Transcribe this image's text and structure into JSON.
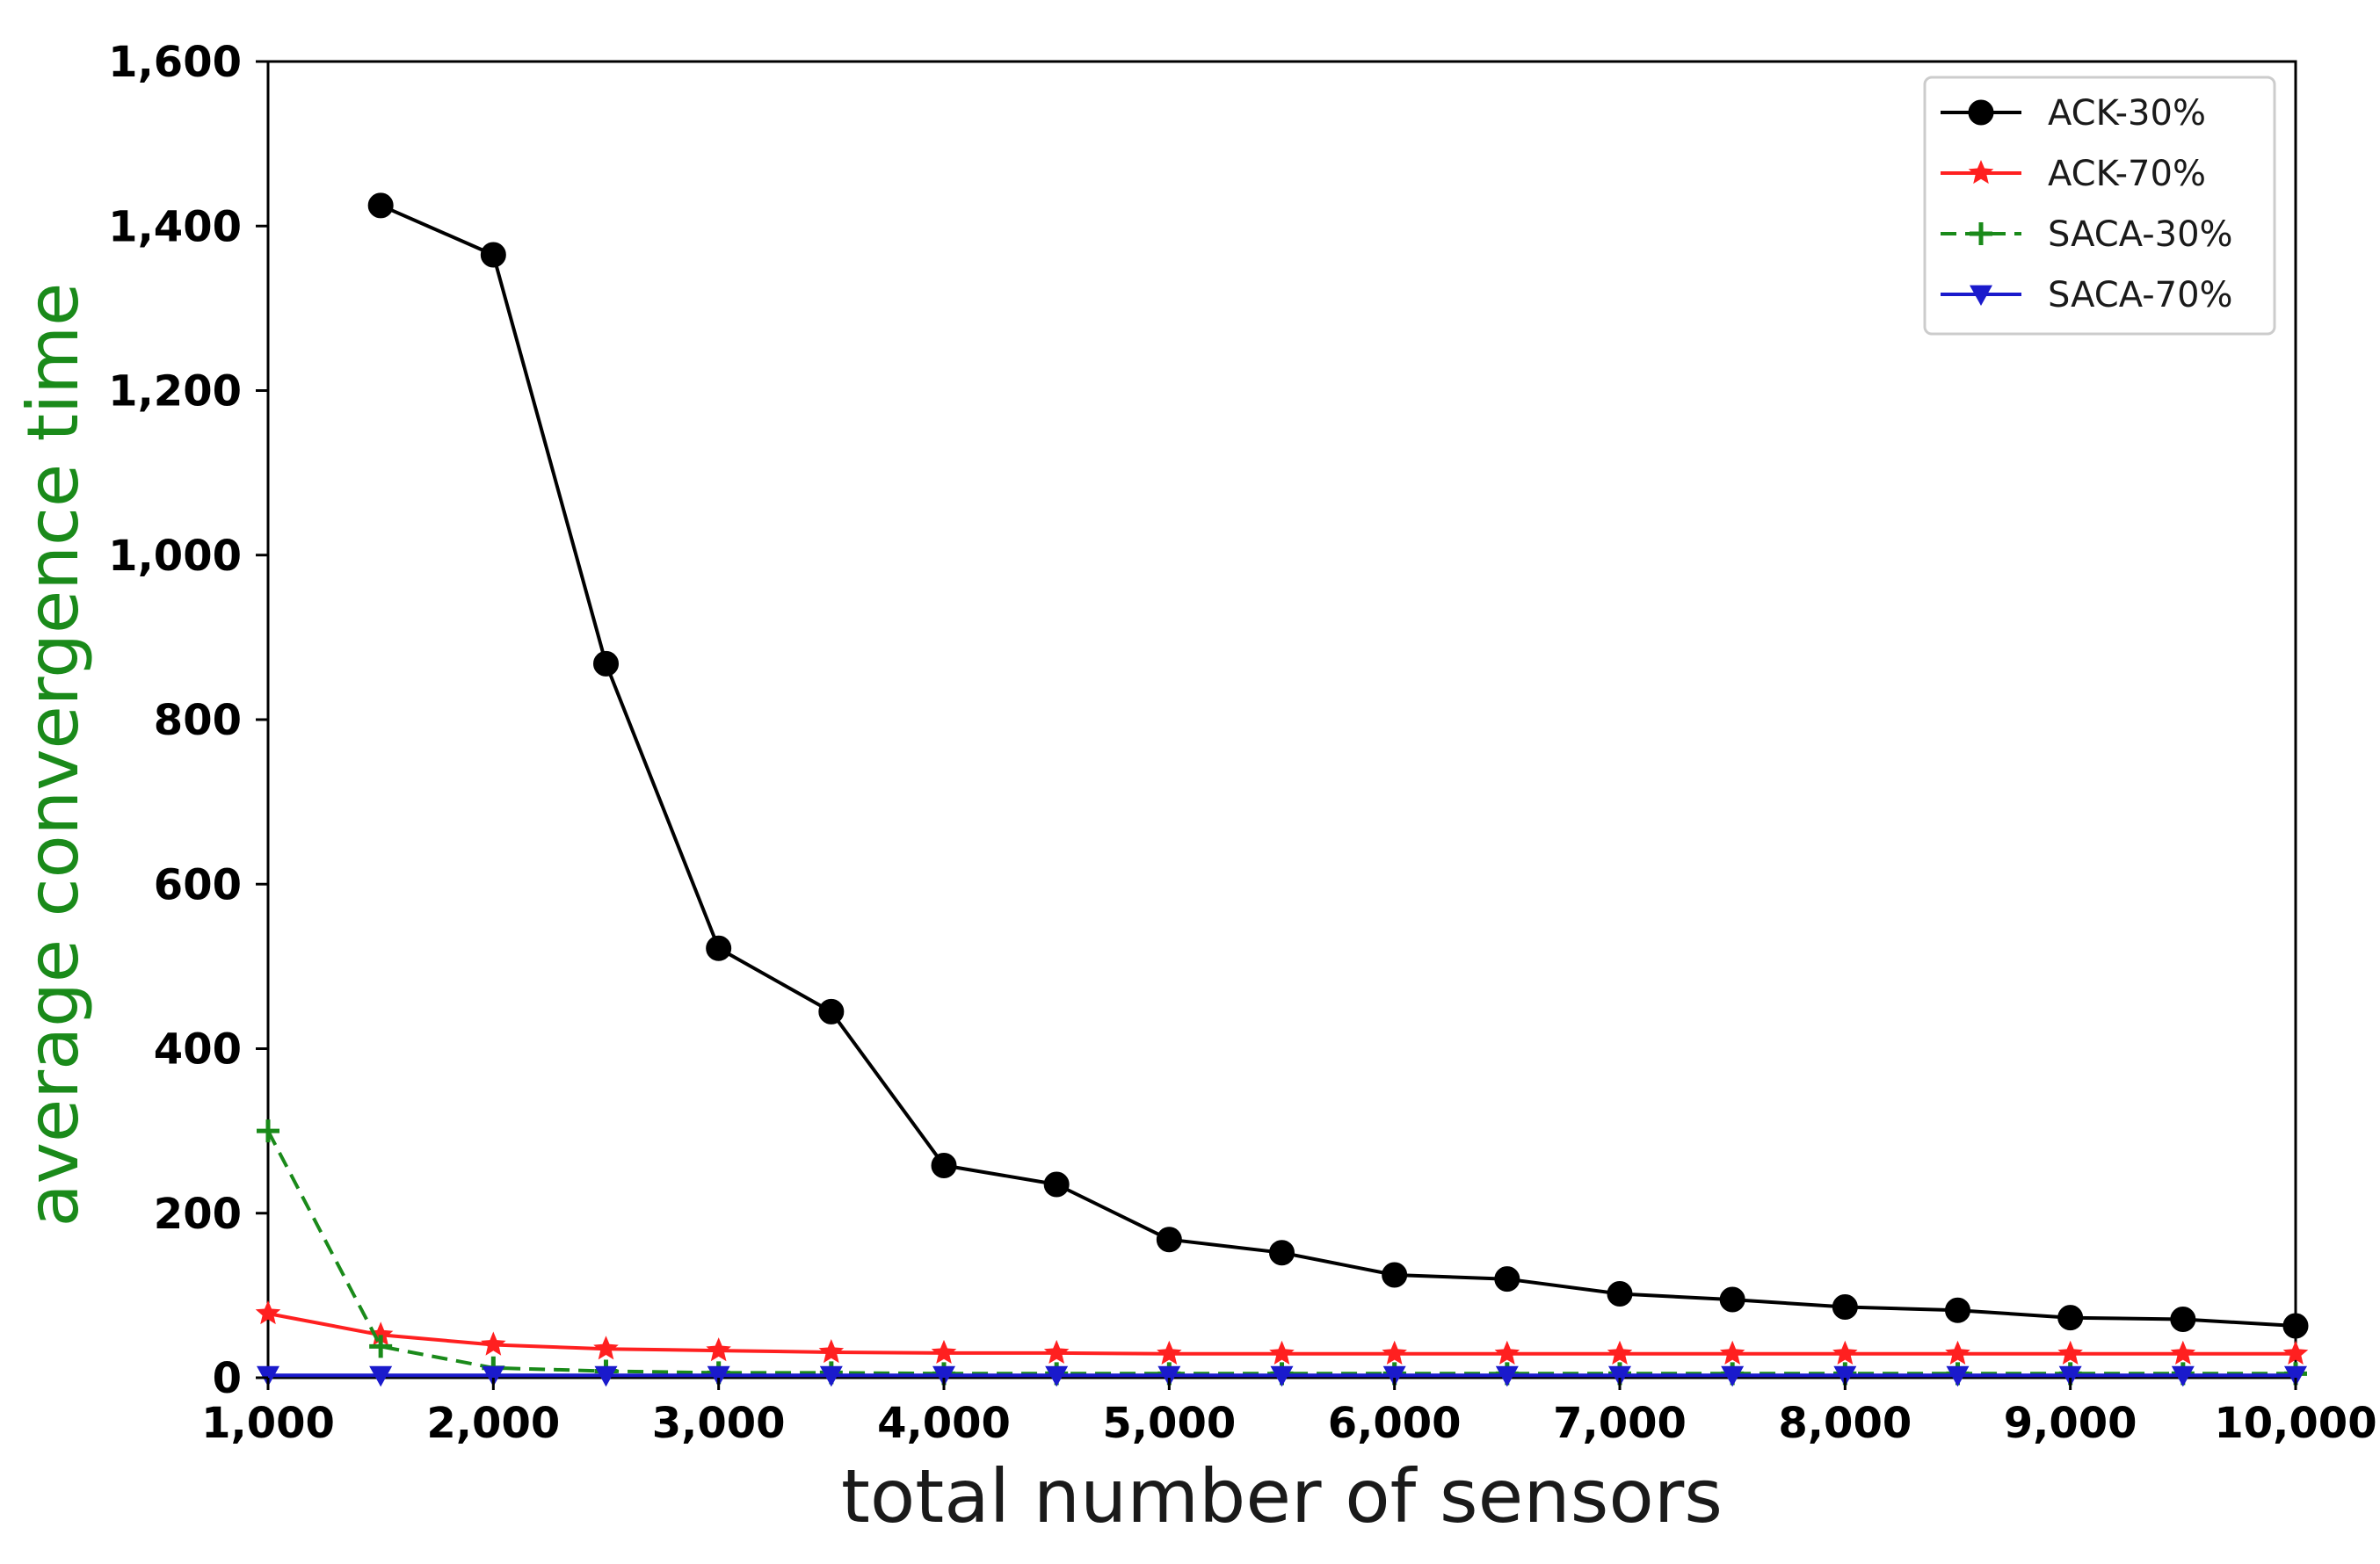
{
  "chart_data": {
    "type": "line",
    "title": "",
    "xlabel": "total number of sensors",
    "ylabel": "average convergence time",
    "ylabel_color": "#1a8a1a",
    "xlim": [
      1000,
      10000
    ],
    "ylim": [
      0,
      1600
    ],
    "xticks": [
      1000,
      2000,
      3000,
      4000,
      5000,
      6000,
      7000,
      8000,
      9000,
      10000
    ],
    "xtick_labels": [
      "1,000",
      "2,000",
      "3,000",
      "4,000",
      "5,000",
      "6,000",
      "7,000",
      "8,000",
      "9,000",
      "10,000"
    ],
    "yticks": [
      0,
      200,
      400,
      600,
      800,
      1000,
      1200,
      1400,
      1600
    ],
    "ytick_labels": [
      "0",
      "200",
      "400",
      "600",
      "800",
      "1,000",
      "1,200",
      "1,400",
      "1,600"
    ],
    "grid": false,
    "legend_position": "top-right",
    "series": [
      {
        "name": "ACK-30%",
        "color": "#000000",
        "marker": "circle",
        "dash": "solid",
        "x": [
          1500,
          2000,
          2500,
          3000,
          3500,
          4000,
          4500,
          5000,
          5500,
          6000,
          6500,
          7000,
          7500,
          8000,
          8500,
          9000,
          9500,
          10000
        ],
        "y": [
          1425,
          1365,
          868,
          522,
          445,
          258,
          235,
          168,
          152,
          125,
          120,
          102,
          95,
          86,
          82,
          73,
          71,
          63
        ]
      },
      {
        "name": "ACK-70%",
        "color": "#ff2020",
        "marker": "star",
        "dash": "solid",
        "x": [
          1000,
          1500,
          2000,
          2500,
          3000,
          3500,
          4000,
          4500,
          5000,
          5500,
          6000,
          6500,
          7000,
          7500,
          8000,
          8500,
          9000,
          9500,
          10000
        ],
        "y": [
          78,
          52,
          40,
          35,
          33,
          31,
          30,
          30,
          29,
          29,
          29,
          29,
          29,
          29,
          29,
          29,
          29,
          29,
          29
        ]
      },
      {
        "name": "SACA-30%",
        "color": "#1a8a1a",
        "marker": "plus",
        "dash": "dashed",
        "x": [
          1000,
          1500,
          2000,
          2500,
          3000,
          3500,
          4000,
          4500,
          5000,
          5500,
          6000,
          6500,
          7000,
          7500,
          8000,
          8500,
          9000,
          9500,
          10000
        ],
        "y": [
          300,
          38,
          12,
          8,
          6,
          6,
          5,
          5,
          5,
          5,
          5,
          5,
          5,
          5,
          5,
          5,
          5,
          5,
          5
        ]
      },
      {
        "name": "SACA-70%",
        "color": "#1a1acc",
        "marker": "triangle-down",
        "dash": "solid",
        "x": [
          1000,
          1500,
          2000,
          2500,
          3000,
          3500,
          4000,
          4500,
          5000,
          5500,
          6000,
          6500,
          7000,
          7500,
          8000,
          8500,
          9000,
          9500,
          10000
        ],
        "y": [
          3,
          3,
          3,
          3,
          3,
          3,
          3,
          3,
          3,
          3,
          3,
          3,
          3,
          3,
          3,
          3,
          3,
          3,
          3
        ]
      }
    ]
  }
}
